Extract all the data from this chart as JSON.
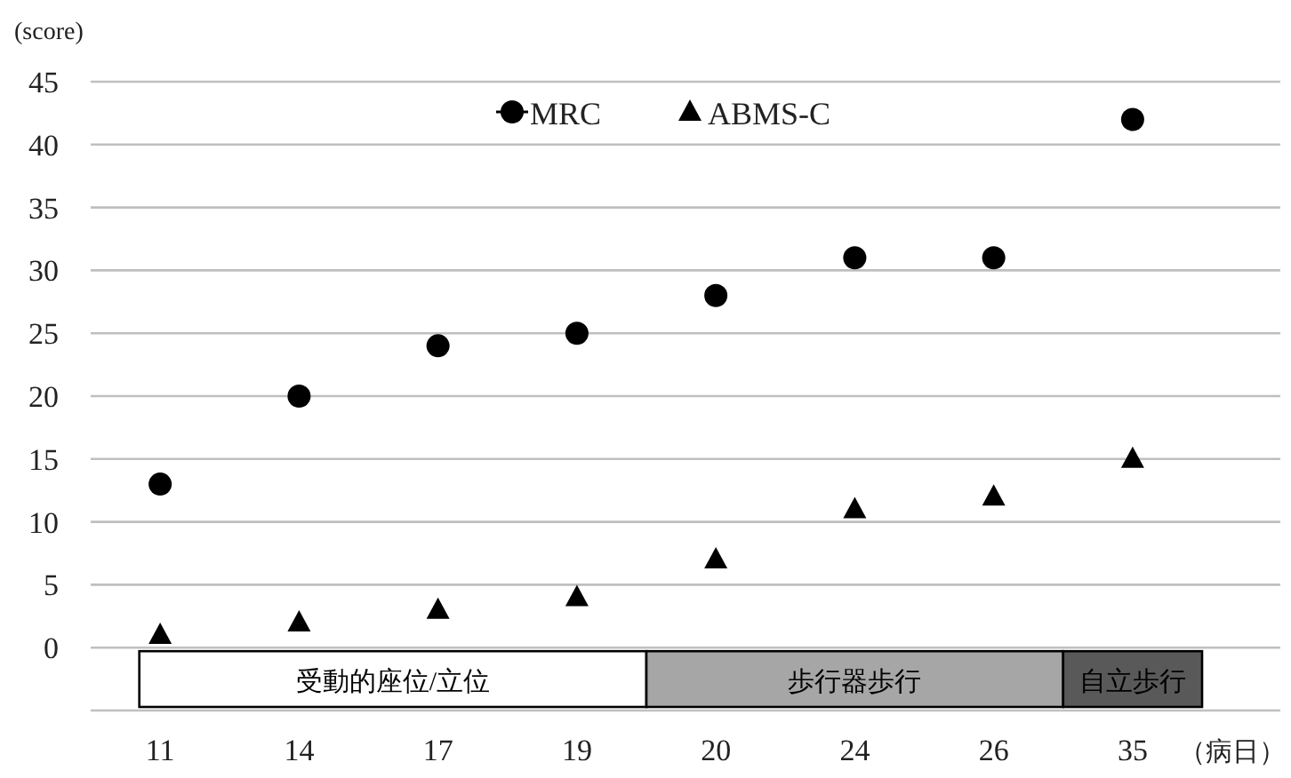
{
  "chart_data": {
    "type": "scatter",
    "ylabel": "(score)",
    "xlabel": "（病日）",
    "categories": [
      "11",
      "14",
      "17",
      "19",
      "20",
      "24",
      "26",
      "35"
    ],
    "series": [
      {
        "name": "MRC",
        "color": "#000000",
        "marker": "circle",
        "values": [
          13,
          20,
          24,
          25,
          28,
          31,
          31,
          42
        ]
      },
      {
        "name": "ABMS-C",
        "color": "#000000",
        "marker": "triangle",
        "values": [
          1,
          2,
          3,
          4,
          7,
          11,
          12,
          15
        ]
      }
    ],
    "ylim": [
      -5,
      45
    ],
    "yticks": [
      {
        "value": -5,
        "label": null
      },
      0,
      5,
      10,
      15,
      20,
      25,
      30,
      35,
      40,
      45
    ],
    "grid": "y",
    "legend": "top",
    "bands": [
      {
        "axis": "x",
        "from": "11",
        "to": "19",
        "label": "受動的座位/立位",
        "color": "#ffffff"
      },
      {
        "axis": "x",
        "from": "20",
        "to": "26",
        "label": "歩行器歩行",
        "color": "#a6a6a6"
      },
      {
        "axis": "x",
        "from": "35",
        "to": "35",
        "label": "自立歩行",
        "color": "#595959"
      }
    ]
  }
}
